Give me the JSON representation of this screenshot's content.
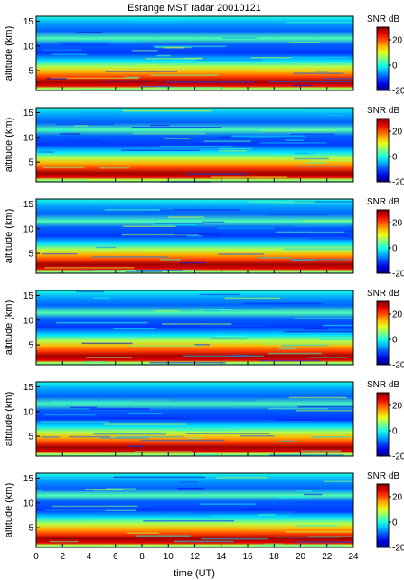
{
  "title": "Esrange MST radar 20010121",
  "colorbar": {
    "label": "SNR dB",
    "ticks": [
      20,
      0,
      -20
    ],
    "range": [
      -20,
      30
    ],
    "colormap": "jet"
  },
  "chart_data": {
    "type": "heatmap",
    "title": "Esrange MST radar 20010121",
    "xlabel": "time (UT)",
    "ylabel": "altitude (km)",
    "xlim": [
      0,
      24
    ],
    "ylim": [
      1,
      16
    ],
    "x_ticks": [
      0,
      2,
      4,
      6,
      8,
      10,
      12,
      14,
      16,
      18,
      20,
      22,
      24
    ],
    "y_ticks": [
      5,
      10,
      15
    ],
    "panel_count": 6,
    "value_label": "SNR dB",
    "value_range": [
      -20,
      30
    ],
    "grid": false
  }
}
